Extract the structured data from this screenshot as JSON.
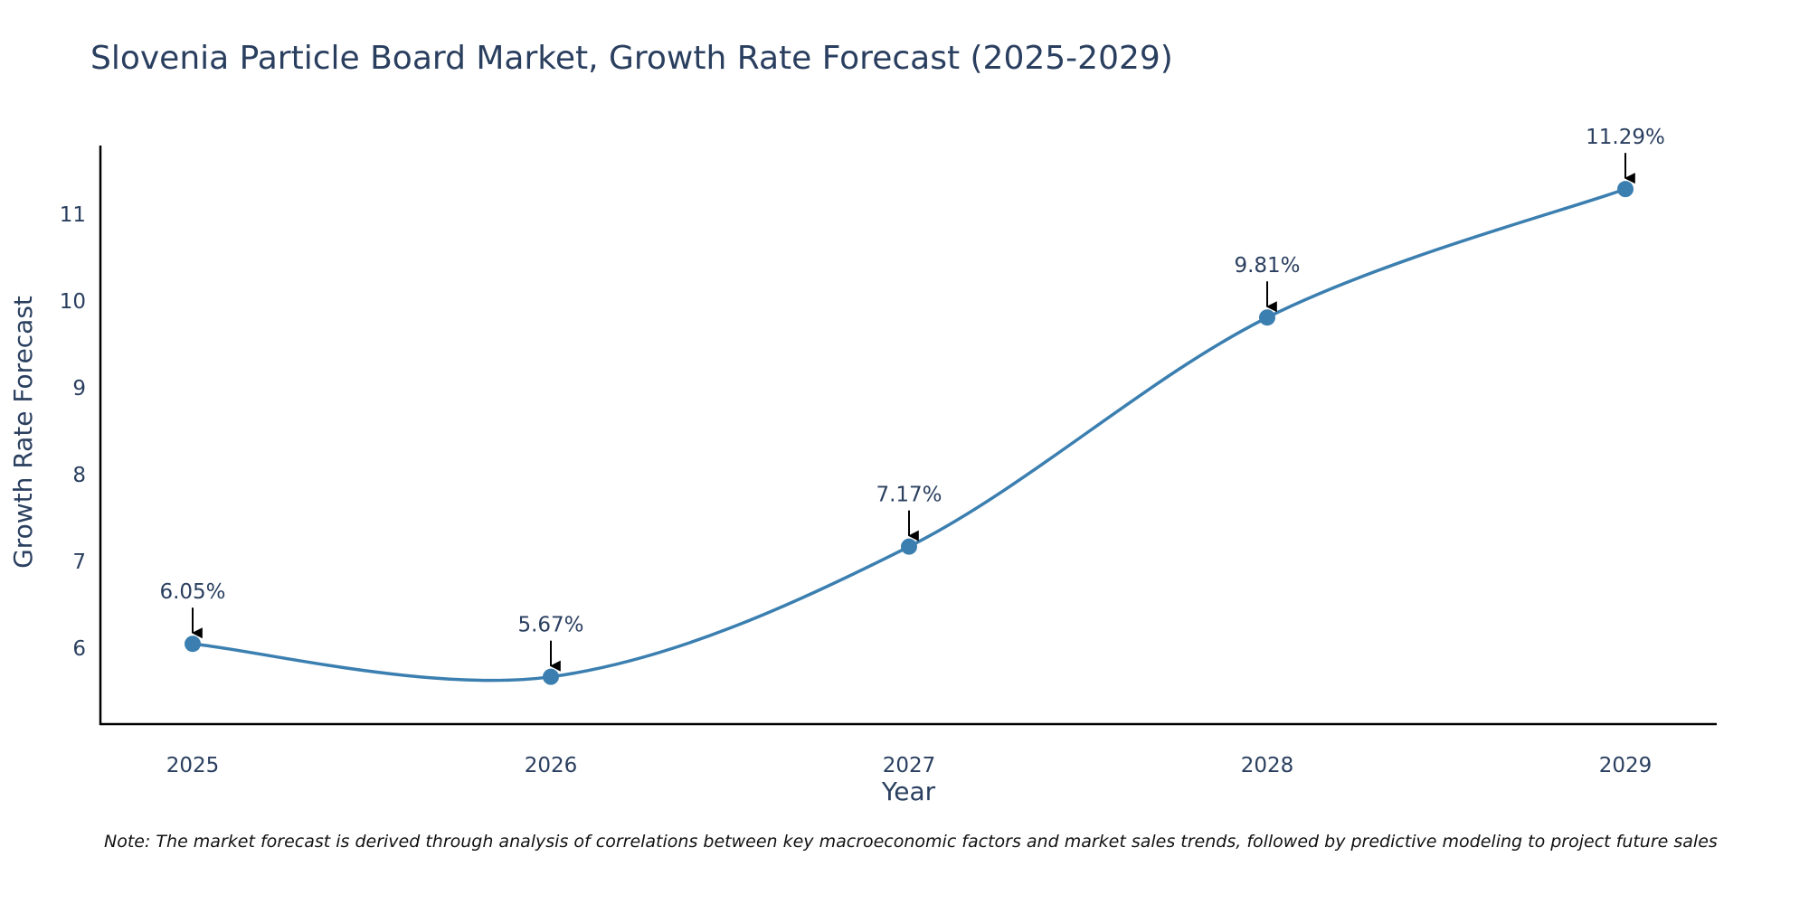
{
  "chart_data": {
    "type": "line",
    "title": "Slovenia Particle Board Market, Growth Rate Forecast (2025-2029)",
    "xlabel": "Year",
    "ylabel": "Growth Rate Forecast",
    "x": [
      2025,
      2026,
      2027,
      2028,
      2029
    ],
    "x_tick_labels": [
      "2025",
      "2026",
      "2027",
      "2028",
      "2029"
    ],
    "y_ticks": [
      6,
      7,
      8,
      9,
      10,
      11
    ],
    "y_tick_labels": [
      "6",
      "7",
      "8",
      "9",
      "10",
      "11"
    ],
    "ylim": [
      5.15,
      11.8
    ],
    "series": [
      {
        "name": "Growth Rate Forecast",
        "values": [
          6.05,
          5.67,
          7.17,
          9.81,
          11.29
        ],
        "color": "#3b7fb0",
        "line_shape": "spline"
      }
    ],
    "annotations": [
      "6.05%",
      "5.67%",
      "7.17%",
      "9.81%",
      "11.29%"
    ],
    "grid": false,
    "note": "Note: The market forecast is derived through analysis of correlations between key macroeconomic factors and market sales trends, followed by predictive modeling to project future sales"
  }
}
